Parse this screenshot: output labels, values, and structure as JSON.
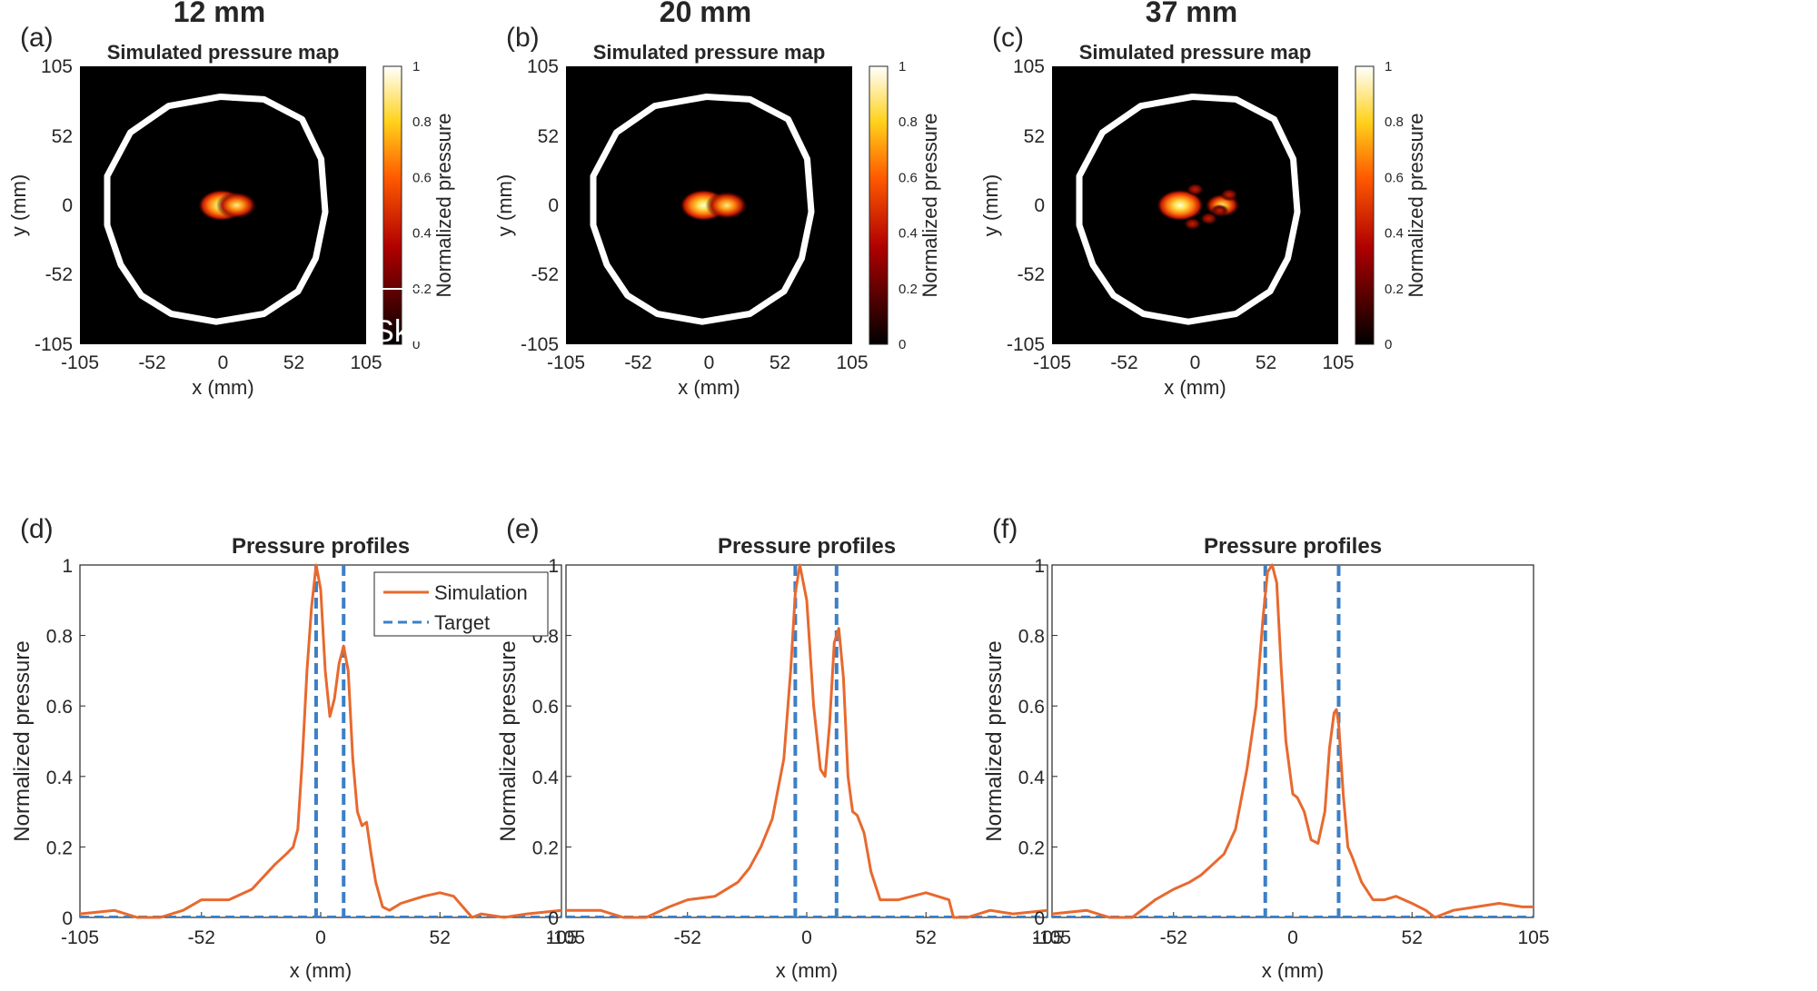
{
  "figure": {
    "panels_top": [
      {
        "letter": "(a)",
        "header": "12 mm",
        "title": "Simulated pressure map",
        "xlabel": "x (mm)",
        "ylabel": "y (mm)",
        "colorbar_label": "Normalized pressure",
        "annotation": "Skull"
      },
      {
        "letter": "(b)",
        "header": "20 mm",
        "title": "Simulated pressure map",
        "xlabel": "x (mm)",
        "ylabel": "y (mm)",
        "colorbar_label": "Normalized pressure"
      },
      {
        "letter": "(c)",
        "header": "37 mm",
        "title": "Simulated pressure map",
        "xlabel": "x (mm)",
        "ylabel": "y (mm)",
        "colorbar_label": "Normalized pressure"
      }
    ],
    "panels_bottom": [
      {
        "letter": "(d)",
        "title": "Pressure profiles",
        "xlabel": "x (mm)",
        "ylabel": "Normalized pressure"
      },
      {
        "letter": "(e)",
        "title": "Pressure profiles",
        "xlabel": "x (mm)",
        "ylabel": "Normalized pressure"
      },
      {
        "letter": "(f)",
        "title": "Pressure profiles",
        "xlabel": "x (mm)",
        "ylabel": "Normalized pressure"
      }
    ],
    "map_ticks": [
      "-105",
      "-52",
      "0",
      "52",
      "105"
    ],
    "colorbar_ticks": [
      "0",
      "0.2",
      "0.4",
      "0.6",
      "0.8",
      "1"
    ],
    "profile_xticks": [
      "-105",
      "-52",
      "0",
      "52",
      "105"
    ],
    "profile_yticks": [
      "0",
      "0.2",
      "0.4",
      "0.6",
      "0.8",
      "1"
    ],
    "legend": {
      "simulation": "Simulation",
      "target": "Target"
    }
  },
  "colors": {
    "simulation": "#E8692E",
    "target": "#3C7FC6",
    "axis": "#262626",
    "map_bg": "#000000",
    "skull": "#ffffff"
  },
  "chart_data": [
    {
      "type": "heatmap",
      "title": "Simulated pressure map",
      "header": "12 mm",
      "xlim": [
        -105,
        105
      ],
      "ylim": [
        -105,
        105
      ],
      "clim": [
        0,
        1
      ],
      "foci": [
        {
          "x": -1,
          "y": 0,
          "value": 1.0
        },
        {
          "x": 10,
          "y": 0,
          "value": 0.77
        }
      ]
    },
    {
      "type": "heatmap",
      "title": "Simulated pressure map",
      "header": "20 mm",
      "xlim": [
        -105,
        105
      ],
      "ylim": [
        -105,
        105
      ],
      "clim": [
        0,
        1
      ],
      "foci": [
        {
          "x": -4,
          "y": 0,
          "value": 1.0
        },
        {
          "x": 13,
          "y": 0,
          "value": 0.82
        }
      ]
    },
    {
      "type": "heatmap",
      "title": "Simulated pressure map",
      "header": "37 mm",
      "xlim": [
        -105,
        105
      ],
      "ylim": [
        -105,
        105
      ],
      "clim": [
        0,
        1
      ],
      "foci": [
        {
          "x": -11,
          "y": 0,
          "value": 1.0
        },
        {
          "x": 20,
          "y": 0,
          "value": 0.6
        }
      ]
    },
    {
      "type": "line",
      "title": "Pressure profiles",
      "xlabel": "x (mm)",
      "ylabel": "Normalized pressure",
      "xlim": [
        -105,
        105
      ],
      "ylim": [
        0,
        1
      ],
      "targets": [
        -2,
        10
      ],
      "series": [
        {
          "name": "Simulation",
          "x": [
            -105,
            -90,
            -80,
            -70,
            -60,
            -52,
            -40,
            -30,
            -20,
            -15,
            -12,
            -10,
            -8,
            -6,
            -4,
            -2,
            0,
            2,
            4,
            6,
            8,
            10,
            12,
            14,
            16,
            18,
            20,
            22,
            24,
            27,
            30,
            35,
            40,
            45,
            52,
            58,
            62,
            66,
            70,
            80,
            90,
            105
          ],
          "y": [
            0.01,
            0.02,
            0.0,
            0.0,
            0.02,
            0.05,
            0.05,
            0.08,
            0.15,
            0.18,
            0.2,
            0.25,
            0.45,
            0.7,
            0.88,
            1.0,
            0.93,
            0.7,
            0.57,
            0.62,
            0.72,
            0.77,
            0.7,
            0.45,
            0.3,
            0.26,
            0.27,
            0.18,
            0.1,
            0.03,
            0.02,
            0.04,
            0.05,
            0.06,
            0.07,
            0.06,
            0.03,
            0.0,
            0.01,
            0.0,
            0.01,
            0.02
          ]
        }
      ]
    },
    {
      "type": "line",
      "title": "Pressure profiles",
      "xlabel": "x (mm)",
      "ylabel": "Normalized pressure",
      "xlim": [
        -105,
        105
      ],
      "ylim": [
        0,
        1
      ],
      "targets": [
        -5,
        13
      ],
      "series": [
        {
          "name": "Simulation",
          "x": [
            -105,
            -90,
            -80,
            -70,
            -60,
            -52,
            -40,
            -30,
            -25,
            -20,
            -15,
            -10,
            -7,
            -5,
            -3,
            0,
            3,
            6,
            8,
            10,
            12,
            14,
            16,
            18,
            20,
            22,
            25,
            28,
            32,
            40,
            52,
            62,
            64,
            70,
            80,
            90,
            105
          ],
          "y": [
            0.02,
            0.02,
            0.0,
            0.0,
            0.03,
            0.05,
            0.06,
            0.1,
            0.14,
            0.2,
            0.28,
            0.45,
            0.7,
            0.92,
            1.0,
            0.9,
            0.6,
            0.42,
            0.4,
            0.55,
            0.78,
            0.82,
            0.68,
            0.4,
            0.3,
            0.29,
            0.24,
            0.13,
            0.05,
            0.05,
            0.07,
            0.05,
            0.0,
            0.0,
            0.02,
            0.01,
            0.02
          ]
        }
      ]
    },
    {
      "type": "line",
      "title": "Pressure profiles",
      "xlabel": "x (mm)",
      "ylabel": "Normalized pressure",
      "xlim": [
        -105,
        105
      ],
      "ylim": [
        0,
        1
      ],
      "targets": [
        -12,
        20
      ],
      "series": [
        {
          "name": "Simulation",
          "x": [
            -105,
            -90,
            -80,
            -70,
            -60,
            -52,
            -45,
            -40,
            -35,
            -30,
            -25,
            -20,
            -16,
            -13,
            -11,
            -9,
            -7,
            -5,
            -3,
            0,
            2,
            5,
            8,
            11,
            14,
            16,
            18,
            19,
            20,
            22,
            24,
            26,
            30,
            35,
            40,
            45,
            52,
            58,
            62,
            70,
            80,
            90,
            100,
            105
          ],
          "y": [
            0.01,
            0.02,
            0.0,
            0.0,
            0.05,
            0.08,
            0.1,
            0.12,
            0.15,
            0.18,
            0.25,
            0.42,
            0.6,
            0.85,
            0.98,
            1.0,
            0.95,
            0.7,
            0.5,
            0.35,
            0.34,
            0.3,
            0.22,
            0.21,
            0.3,
            0.48,
            0.58,
            0.59,
            0.55,
            0.35,
            0.2,
            0.17,
            0.1,
            0.05,
            0.05,
            0.06,
            0.04,
            0.02,
            0.0,
            0.02,
            0.03,
            0.04,
            0.03,
            0.03
          ]
        }
      ]
    }
  ]
}
